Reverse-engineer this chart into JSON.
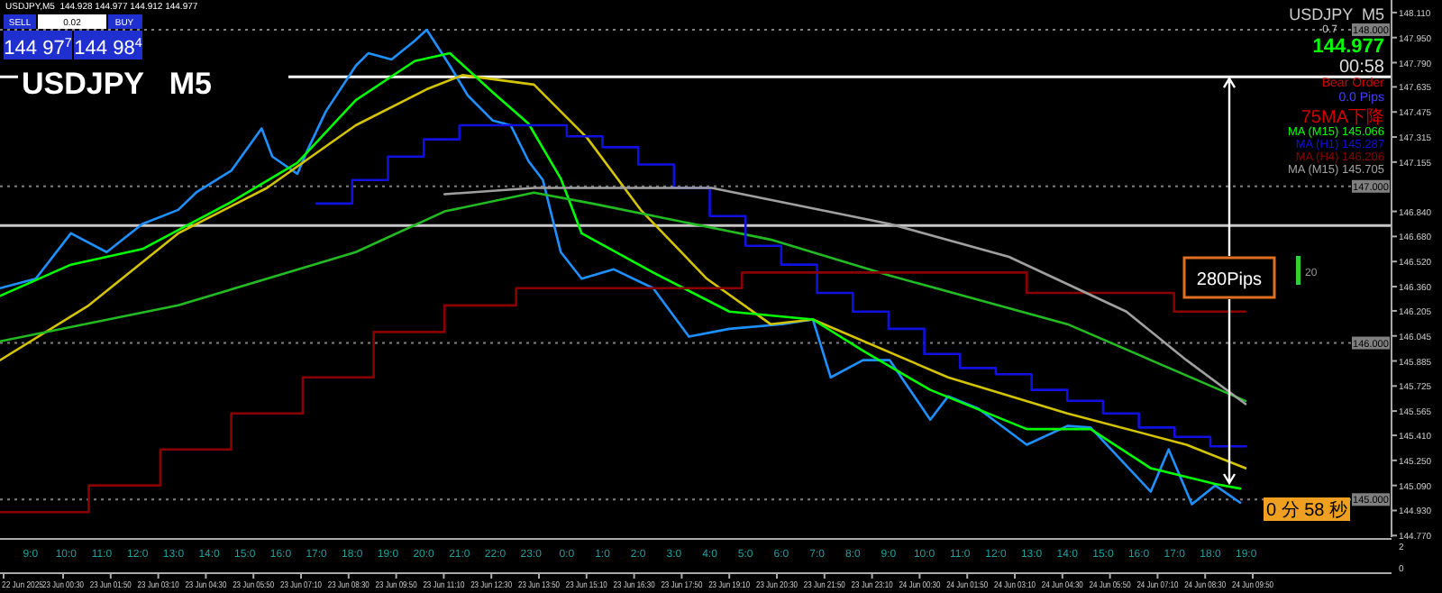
{
  "chart_data": {
    "type": "line",
    "title": "USDJPY   M5",
    "annotations": [
      "USDJPY,M5  144.928 144.977 144.912 144.977",
      "SELL",
      "0.02",
      "BUY",
      "144 97$^{7}$",
      "144 98$^{4}$",
      "USDJPY  M5",
      "0.7",
      "144.977",
      "00:58",
      "Bear Order",
      "0.0 Pips",
      "75MA下降",
      {
        "text": "280Pips"
      },
      "20",
      "0 分 58 秒",
      "2",
      "0",
      "22 Jun 2025",
      "23 Jun 00:30",
      "23 Jun 01:50",
      "23 Jun 03:10",
      "23 Jun 04:30",
      "23 Jun 05:50",
      "23 Jun 07:10",
      "23 Jun 08:30",
      "23 Jun 09:50",
      "23 Jun 11:10",
      "23 Jun 12:30",
      "23 Jun 13:50",
      "23 Jun 15:10",
      "23 Jun 16:30",
      "23 Jun 17:50",
      "23 Jun 19:10",
      "23 Jun 20:30",
      "23 Jun 21:50",
      "23 Jun 23:10",
      "24 Jun 00:30",
      "24 Jun 01:50",
      "24 Jun 03:10",
      "24 Jun 04:30",
      "24 Jun 05:50",
      "24 Jun 07:10",
      "24 Jun 08:30",
      "24 Jun 09:50"
    ],
    "xlim": [
      "2025-06-23T08:09",
      "2025-06-24T23:04"
    ],
    "ylim": [
      144.76,
      148.19
    ],
    "xticks": [
      {
        "value": "2025-06-23T09:00",
        "label": "9:0"
      },
      {
        "value": "2025-06-23T10:00",
        "label": "10:0"
      },
      {
        "value": "2025-06-23T11:00",
        "label": "11:0"
      },
      {
        "value": "2025-06-23T12:00",
        "label": "12:0"
      },
      {
        "value": "2025-06-23T13:00",
        "label": "13:0"
      },
      {
        "value": "2025-06-23T14:00",
        "label": "14:0"
      },
      {
        "value": "2025-06-23T15:00",
        "label": "15:0"
      },
      {
        "value": "2025-06-23T16:00",
        "label": "16:0"
      },
      {
        "value": "2025-06-23T17:00",
        "label": "17:0"
      },
      {
        "value": "2025-06-23T18:00",
        "label": "18:0"
      },
      {
        "value": "2025-06-23T19:00",
        "label": "19:0"
      },
      {
        "value": "2025-06-23T20:00",
        "label": "20:0"
      },
      {
        "value": "2025-06-23T21:00",
        "label": "21:0"
      },
      {
        "value": "2025-06-23T22:00",
        "label": "22:0"
      },
      {
        "value": "2025-06-23T23:00",
        "label": "23:0"
      },
      {
        "value": "2025-06-24T00:00",
        "label": "0:0"
      },
      {
        "value": "2025-06-24T01:00",
        "label": "1:0"
      },
      {
        "value": "2025-06-24T02:00",
        "label": "2:0"
      },
      {
        "value": "2025-06-24T03:00",
        "label": "3:0"
      },
      {
        "value": "2025-06-24T04:00",
        "label": "4:0"
      },
      {
        "value": "2025-06-24T05:00",
        "label": "5:0"
      },
      {
        "value": "2025-06-24T06:00",
        "label": "6:0"
      },
      {
        "value": "2025-06-24T07:00",
        "label": "7:0"
      },
      {
        "value": "2025-06-24T08:00",
        "label": "8:0"
      },
      {
        "value": "2025-06-24T09:00",
        "label": "9:0"
      },
      {
        "value": "2025-06-24T10:00",
        "label": "10:0"
      },
      {
        "value": "2025-06-24T11:00",
        "label": "11:0"
      },
      {
        "value": "2025-06-24T12:00",
        "label": "12:0"
      },
      {
        "value": "2025-06-24T13:00",
        "label": "13:0"
      },
      {
        "value": "2025-06-24T14:00",
        "label": "14:0"
      },
      {
        "value": "2025-06-24T15:00",
        "label": "15:0"
      },
      {
        "value": "2025-06-24T16:00",
        "label": "16:0"
      },
      {
        "value": "2025-06-24T17:00",
        "label": "17:0"
      },
      {
        "value": "2025-06-24T18:00",
        "label": "18:0"
      },
      {
        "value": "2025-06-24T19:00",
        "label": "19:0"
      }
    ],
    "yticks": [
      {
        "value": 148.11,
        "label": "148.110"
      },
      {
        "value": 147.95,
        "label": "147.950"
      },
      {
        "value": 147.79,
        "label": "147.790"
      },
      {
        "value": 147.635,
        "label": "147.635"
      },
      {
        "value": 147.475,
        "label": "147.475"
      },
      {
        "value": 147.315,
        "label": "147.315"
      },
      {
        "value": 147.155,
        "label": "147.155"
      },
      {
        "value": 146.84,
        "label": "146.840"
      },
      {
        "value": 146.68,
        "label": "146.680"
      },
      {
        "value": 146.52,
        "label": "146.520"
      },
      {
        "value": 146.36,
        "label": "146.360"
      },
      {
        "value": 146.205,
        "label": "146.205"
      },
      {
        "value": 146.045,
        "label": "146.045"
      },
      {
        "value": 145.885,
        "label": "145.885"
      },
      {
        "value": 145.725,
        "label": "145.725"
      },
      {
        "value": 145.565,
        "label": "145.565"
      },
      {
        "value": 145.41,
        "label": "145.410"
      },
      {
        "value": 145.25,
        "label": "145.250"
      },
      {
        "value": 145.09,
        "label": "145.090"
      },
      {
        "value": 144.93,
        "label": "144.930"
      },
      {
        "value": 144.77,
        "label": "144.770"
      }
    ],
    "ref_lines": [
      {
        "axis": "y",
        "value": 147.7,
        "color": "#ffffff",
        "line_style": "solid"
      },
      {
        "axis": "y",
        "value": 146.75,
        "color": "#c8c8c8",
        "line_style": "solid"
      },
      {
        "axis": "y",
        "value": 148.0,
        "label": "148.000",
        "color": "#808080",
        "line_style": "dotted"
      },
      {
        "axis": "y",
        "value": 147.0,
        "label": "147.000",
        "color": "#808080",
        "line_style": "dotted"
      },
      {
        "axis": "y",
        "value": 146.0,
        "label": "146.000",
        "color": "#808080",
        "line_style": "dotted"
      },
      {
        "axis": "y",
        "value": 145.0,
        "label": "145.000",
        "color": "#808080",
        "line_style": "dotted"
      }
    ],
    "legend": "top right",
    "series": [
      {
        "color": "#1e90ff",
        "x": [
          "2025-06-23T08:09",
          "2025-06-23T09:09",
          "2025-06-23T10:08",
          "2025-06-23T11:08",
          "2025-06-23T12:08",
          "2025-06-23T13:08",
          "2025-06-23T13:38",
          "2025-06-23T14:37",
          "2025-06-23T15:28",
          "2025-06-23T15:46",
          "2025-06-23T16:28",
          "2025-06-23T16:46",
          "2025-06-23T17:16",
          "2025-06-23T18:06",
          "2025-06-23T18:27",
          "2025-06-23T19:06",
          "2025-06-23T19:45",
          "2025-06-23T20:05",
          "2025-06-23T20:44",
          "2025-06-23T21:14",
          "2025-06-23T21:56",
          "2025-06-23T22:26",
          "2025-06-23T22:56",
          "2025-06-23T23:20",
          "2025-06-23T23:50",
          "2025-06-24T00:25",
          "2025-06-24T01:19",
          "2025-06-24T02:25",
          "2025-06-24T03:25",
          "2025-06-24T04:33",
          "2025-06-24T06:02",
          "2025-06-24T06:53",
          "2025-06-24T07:23",
          "2025-06-24T08:17",
          "2025-06-24T09:02",
          "2025-06-24T10:10",
          "2025-06-24T10:40",
          "2025-06-24T11:31",
          "2025-06-24T12:52",
          "2025-06-24T14:00",
          "2025-06-24T14:39",
          "2025-06-24T16:20",
          "2025-06-24T16:50",
          "2025-06-24T17:29",
          "2025-06-24T18:08",
          "2025-06-24T18:50"
        ],
        "values": [
          146.35,
          146.41,
          146.7,
          146.58,
          146.76,
          146.85,
          146.96,
          147.1,
          147.37,
          147.19,
          147.08,
          147.24,
          147.48,
          147.77,
          147.85,
          147.81,
          147.93,
          148.0,
          147.77,
          147.58,
          147.42,
          147.39,
          147.16,
          147.04,
          146.58,
          146.41,
          146.47,
          146.35,
          146.04,
          146.09,
          146.12,
          146.15,
          145.78,
          145.89,
          145.89,
          145.51,
          145.66,
          145.58,
          145.35,
          145.47,
          145.46,
          145.05,
          145.32,
          144.97,
          145.09,
          144.98
        ]
      },
      {
        "color": "#d4c400",
        "x": [
          "2025-06-23T08:09",
          "2025-06-23T10:38",
          "2025-06-23T13:08",
          "2025-06-23T15:37",
          "2025-06-23T18:06",
          "2025-06-23T20:05",
          "2025-06-23T21:05",
          "2025-06-23T22:05",
          "2025-06-23T23:05",
          "2025-06-24T00:34",
          "2025-06-24T02:04",
          "2025-06-24T03:55",
          "2025-06-24T05:42",
          "2025-06-24T06:53",
          "2025-06-24T10:40",
          "2025-06-24T14:00",
          "2025-06-24T17:20",
          "2025-06-24T18:59"
        ],
        "values": [
          145.89,
          146.24,
          146.7,
          146.99,
          147.39,
          147.62,
          147.71,
          147.68,
          147.65,
          147.31,
          146.85,
          146.41,
          146.12,
          146.15,
          145.78,
          145.55,
          145.35,
          145.2
        ]
      },
      {
        "name": "MA (M15) 145.066",
        "color": "#00ff00",
        "x": [
          "2025-06-23T08:09",
          "2025-06-23T10:08",
          "2025-06-23T12:08",
          "2025-06-23T14:37",
          "2025-06-23T16:28",
          "2025-06-23T18:06",
          "2025-06-23T19:45",
          "2025-06-23T20:44",
          "2025-06-23T21:56",
          "2025-06-23T22:56",
          "2025-06-23T23:50",
          "2025-06-24T00:25",
          "2025-06-24T02:25",
          "2025-06-24T04:33",
          "2025-06-24T06:53",
          "2025-06-24T08:17",
          "2025-06-24T10:10",
          "2025-06-24T12:52",
          "2025-06-24T14:39",
          "2025-06-24T16:20",
          "2025-06-24T18:08",
          "2025-06-24T18:50"
        ],
        "values": [
          146.3,
          146.5,
          146.6,
          146.9,
          147.15,
          147.55,
          147.8,
          147.85,
          147.6,
          147.4,
          147.05,
          146.7,
          146.45,
          146.2,
          146.15,
          145.95,
          145.7,
          145.45,
          145.45,
          145.2,
          145.1,
          145.07
        ]
      },
      {
        "color": "#22bb22",
        "x": [
          "2025-06-23T08:09",
          "2025-06-23T13:08",
          "2025-06-23T18:06",
          "2025-06-23T20:35",
          "2025-06-23T23:05",
          "2025-06-24T00:43",
          "2025-06-24T05:42",
          "2025-06-24T09:02",
          "2025-06-24T14:00",
          "2025-06-24T18:59"
        ],
        "values": [
          146.01,
          146.24,
          146.58,
          146.84,
          146.96,
          146.89,
          146.66,
          146.43,
          146.12,
          145.63
        ]
      },
      {
        "name": "MA (H1) 145.287",
        "type": "step",
        "color": "#1010e0",
        "x": [
          "2025-06-23T17:00",
          "2025-06-23T18:00",
          "2025-06-23T19:00",
          "2025-06-23T20:00",
          "2025-06-23T21:00",
          "2025-06-24T00:00",
          "2025-06-24T01:00",
          "2025-06-24T02:00",
          "2025-06-24T03:00",
          "2025-06-24T04:00",
          "2025-06-24T05:00",
          "2025-06-24T06:00",
          "2025-06-24T07:00",
          "2025-06-24T08:00",
          "2025-06-24T09:00",
          "2025-06-24T10:00",
          "2025-06-24T11:00",
          "2025-06-24T12:00",
          "2025-06-24T13:00",
          "2025-06-24T14:00",
          "2025-06-24T15:00",
          "2025-06-24T16:00",
          "2025-06-24T17:00",
          "2025-06-24T18:00",
          "2025-06-24T19:00"
        ],
        "values": [
          146.89,
          147.04,
          147.19,
          147.3,
          147.39,
          147.32,
          147.25,
          147.14,
          146.99,
          146.81,
          146.62,
          146.5,
          146.32,
          146.2,
          146.09,
          145.93,
          145.84,
          145.8,
          145.7,
          145.63,
          145.55,
          145.46,
          145.4,
          145.34,
          145.34
        ]
      },
      {
        "name": "MA (H4) 146.206",
        "type": "step",
        "color": "#8b0000",
        "x": [
          "2025-06-23T08:09",
          "2025-06-23T10:38",
          "2025-06-23T12:38",
          "2025-06-23T14:37",
          "2025-06-23T16:37",
          "2025-06-23T18:36",
          "2025-06-23T20:35",
          "2025-06-23T22:35",
          "2025-06-24T04:54",
          "2025-06-24T12:52",
          "2025-06-24T16:59",
          "2025-06-24T18:59"
        ],
        "values": [
          144.92,
          145.09,
          145.32,
          145.55,
          145.78,
          146.07,
          146.24,
          146.35,
          146.45,
          146.32,
          146.2,
          146.2
        ]
      },
      {
        "name": "MA (M15) 145.705",
        "color": "#a0a0a0",
        "x": [
          "2025-06-23T20:35",
          "2025-06-23T23:05",
          "2025-06-24T04:03",
          "2025-06-24T09:02",
          "2025-06-24T12:22",
          "2025-06-24T15:39",
          "2025-06-24T17:20",
          "2025-06-24T18:59"
        ],
        "values": [
          146.95,
          146.99,
          146.99,
          146.76,
          146.55,
          146.2,
          145.89,
          145.61
        ]
      }
    ]
  }
}
